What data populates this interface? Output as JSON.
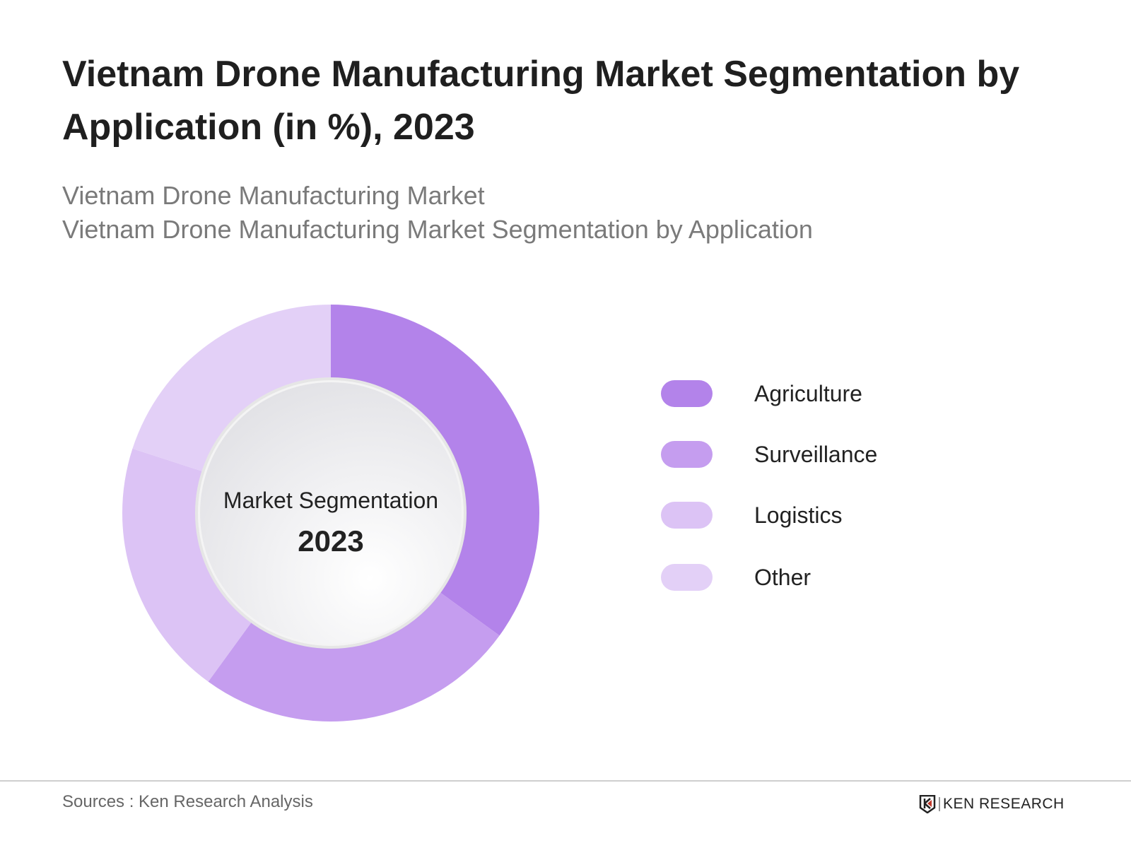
{
  "title": "Vietnam Drone Manufacturing Market Segmentation by Application (in %), 2023",
  "subtitle_lines": [
    "Vietnam Drone Manufacturing Market",
    "Vietnam Drone Manufacturing Market Segmentation by Application"
  ],
  "chart_data": {
    "type": "pie",
    "variant": "donut",
    "categories": [
      "Agriculture",
      "Surveillance",
      "Logistics",
      "Other"
    ],
    "values": [
      35,
      25,
      20,
      20
    ],
    "colors": [
      "#b383ea",
      "#c59def",
      "#dcc3f5",
      "#e3d0f7"
    ],
    "center_label": "Market Segmentation",
    "center_year": "2023",
    "legend_position": "right"
  },
  "footer": {
    "source": "Sources : Ken Research Analysis",
    "logo_text": "KEN RESEARCH"
  }
}
